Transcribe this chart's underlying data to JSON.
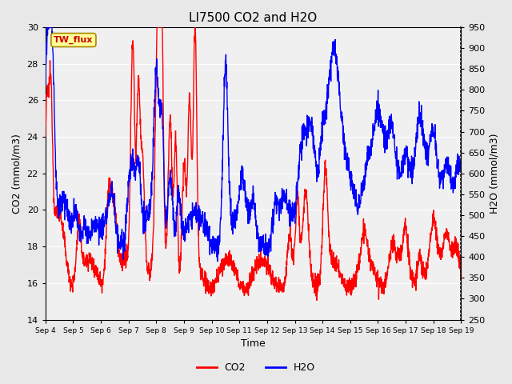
{
  "title": "LI7500 CO2 and H2O",
  "xlabel": "Time",
  "ylabel_left": "CO2 (mmol/m3)",
  "ylabel_right": "H2O (mmol/m3)",
  "ylim_left": [
    14,
    30
  ],
  "ylim_right": [
    250,
    950
  ],
  "co2_color": "#ff0000",
  "h2o_color": "#0000ff",
  "fig_facecolor": "#e8e8e8",
  "axes_facecolor": "#f0f0f0",
  "text_box_label": "TW_flux",
  "text_box_facecolor": "#ffff99",
  "text_box_edgecolor": "#aa8800",
  "text_box_textcolor": "#cc0000",
  "xtick_labels": [
    "Sep 4",
    "Sep 5",
    "Sep 6",
    "Sep 7",
    "Sep 8",
    "Sep 9",
    "Sep 10",
    "Sep 11",
    "Sep 12",
    "Sep 13",
    "Sep 14",
    "Sep 15",
    "Sep 16",
    "Sep 17",
    "Sep 18",
    "Sep 19"
  ],
  "yticks_left": [
    14,
    16,
    18,
    20,
    22,
    24,
    26,
    28,
    30
  ],
  "yticks_right": [
    250,
    300,
    350,
    400,
    450,
    500,
    550,
    600,
    650,
    700,
    750,
    800,
    850,
    900,
    950
  ],
  "linewidth": 1.0,
  "n_points": 2000
}
